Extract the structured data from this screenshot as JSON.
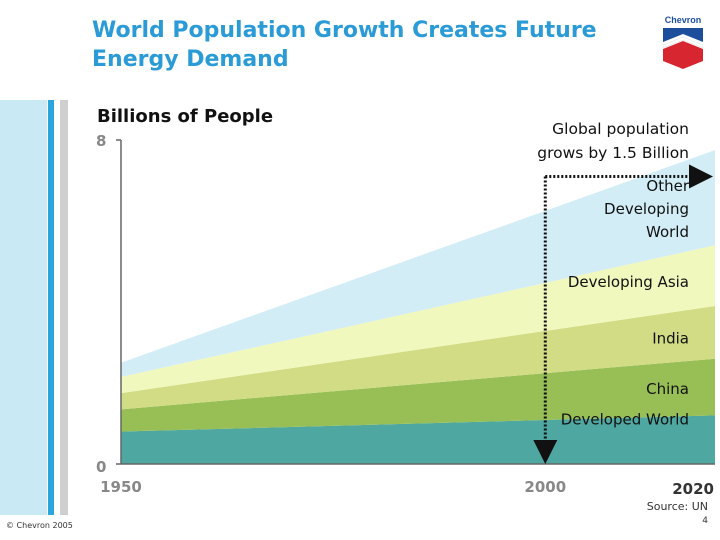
{
  "slide": {
    "title_line1": "World Population Growth Creates Future",
    "title_line2": "Energy Demand",
    "logo_text": "Chevron",
    "copyright": "© Chevron 2005",
    "source": "Source: UN",
    "page_number": "4"
  },
  "colors": {
    "title": "#2a9bd6",
    "accent_bar": "#2aa6dc",
    "developed": "#4ea7a0",
    "china": "#97bf55",
    "india": "#d2dc85",
    "asia": "#f1f8bd",
    "other": "#d2edf6"
  },
  "chart_data": {
    "type": "area",
    "stacked": true,
    "ylabel": "Billions of People",
    "ylim": [
      0,
      8
    ],
    "y_ticks": [
      "0",
      "8"
    ],
    "x": [
      1950,
      2020
    ],
    "x_ticks": [
      {
        "value": 1950,
        "label": "1950"
      },
      {
        "value": 2000,
        "label": "2000"
      },
      {
        "value": 2020,
        "label": "2020"
      }
    ],
    "series": [
      {
        "name": "Developed World",
        "values": [
          0.8,
          1.2
        ]
      },
      {
        "name": "China",
        "values": [
          0.55,
          1.4
        ]
      },
      {
        "name": "India",
        "values": [
          0.4,
          1.3
        ]
      },
      {
        "name": "Developing Asia",
        "values": [
          0.4,
          1.5
        ]
      },
      {
        "name": "Other Developing World",
        "values": [
          0.35,
          2.35
        ]
      }
    ],
    "series_labels": [
      {
        "lines": [
          "Developed World"
        ],
        "value": 1.1
      },
      {
        "lines": [
          "China"
        ],
        "value": 1.85
      },
      {
        "lines": [
          "India"
        ],
        "value": 3.1
      },
      {
        "lines": [
          "Developing Asia"
        ],
        "value": 4.5
      },
      {
        "lines": [
          "Other",
          "Developing",
          "World"
        ],
        "value": 6.3
      }
    ],
    "annotation": {
      "lines": [
        "Global population",
        "grows by 1.5 Billion"
      ],
      "from_x": 2000,
      "to_x": 2020,
      "top_value": 7.1
    }
  }
}
